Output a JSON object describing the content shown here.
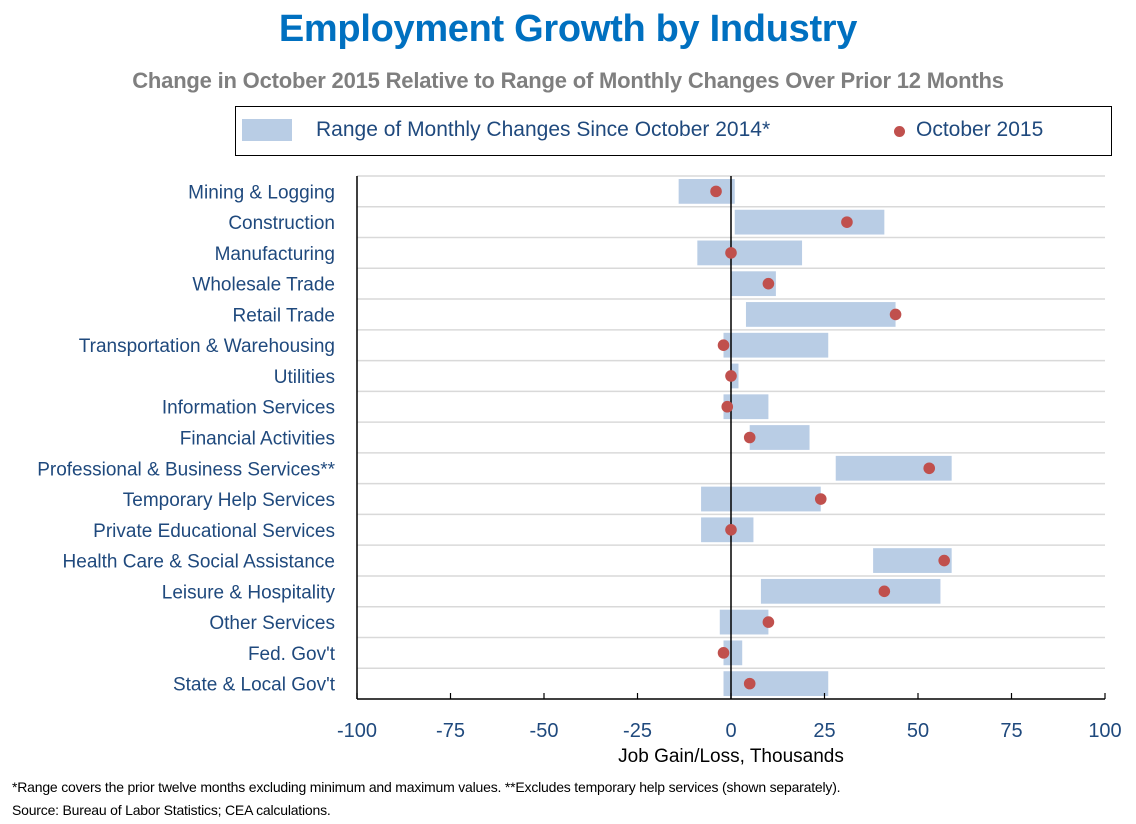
{
  "chart_data": {
    "type": "range-dot",
    "title": "Employment Growth by Industry",
    "subtitle": "Change in October 2015 Relative to Range of Monthly Changes Over Prior 12 Months",
    "xlabel": "Job Gain/Loss, Thousands",
    "ylabel": "",
    "xlim": [
      -100,
      100
    ],
    "xticks": [
      -100,
      -75,
      -50,
      -25,
      0,
      25,
      50,
      75,
      100
    ],
    "grid": "horizontal",
    "legend_position": "top",
    "legend": [
      {
        "name": "Range of Monthly Changes Since October 2014*",
        "type": "bar",
        "color": "#B9CDE5"
      },
      {
        "name": "October 2015",
        "type": "dot",
        "color": "#C0504D"
      }
    ],
    "categories": [
      "Mining & Logging",
      "Construction",
      "Manufacturing",
      "Wholesale Trade",
      "Retail Trade",
      "Transportation & Warehousing",
      "Utilities",
      "Information Services",
      "Financial Activities",
      "Professional & Business Services**",
      "Temporary Help Services",
      "Private Educational Services",
      "Health Care & Social Assistance",
      "Leisure & Hospitality",
      "Other Services",
      "Fed. Gov't",
      "State & Local Gov't"
    ],
    "series": [
      {
        "name": "Range of Monthly Changes Since October 2014*",
        "type": "range",
        "values": [
          [
            -14,
            1
          ],
          [
            1,
            41
          ],
          [
            -9,
            19
          ],
          [
            0,
            12
          ],
          [
            4,
            44
          ],
          [
            -2,
            26
          ],
          [
            0,
            2
          ],
          [
            -2,
            10
          ],
          [
            5,
            21
          ],
          [
            28,
            59
          ],
          [
            -8,
            24
          ],
          [
            -8,
            6
          ],
          [
            38,
            59
          ],
          [
            8,
            56
          ],
          [
            -3,
            10
          ],
          [
            -2,
            3
          ],
          [
            -2,
            26
          ]
        ]
      },
      {
        "name": "October 2015",
        "type": "dot",
        "values": [
          -4,
          31,
          0,
          10,
          44,
          -2,
          0,
          -1,
          5,
          53,
          24,
          0,
          57,
          41,
          10,
          -2,
          5
        ]
      }
    ]
  },
  "footnotes": {
    "note": "*Range covers the prior twelve months excluding minimum and maximum values.   **Excludes temporary help services (shown separately).",
    "source": "Source: Bureau of Labor Statistics; CEA calculations."
  }
}
